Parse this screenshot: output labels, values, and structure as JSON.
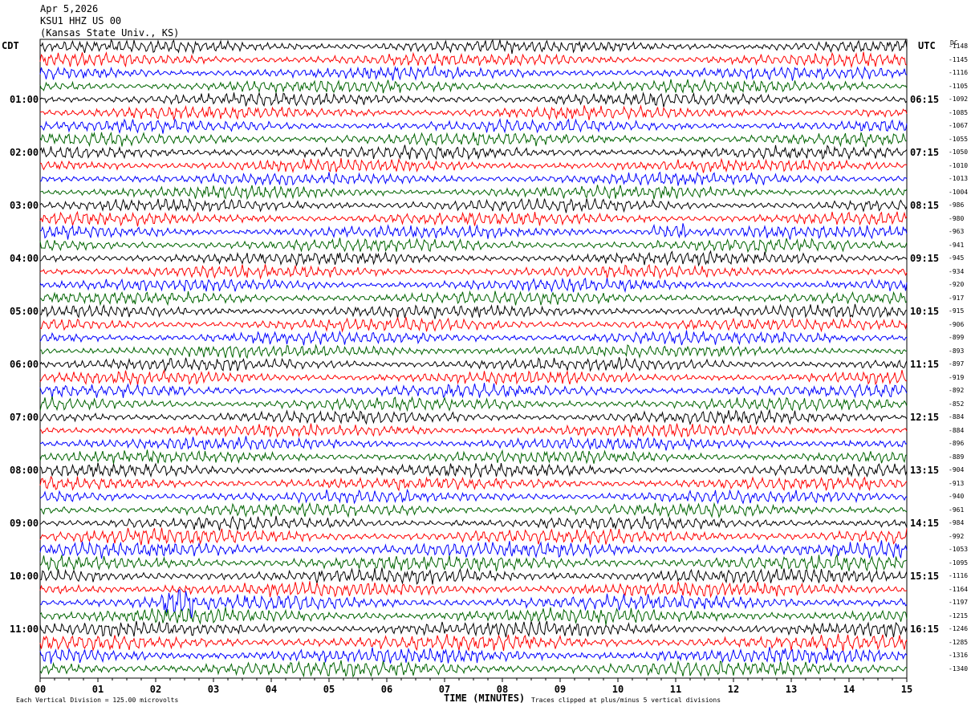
{
  "header": {
    "date": "Apr 5,2026",
    "station": "KSU1 HHZ US 00",
    "institution": "(Kansas State Univ., KS)"
  },
  "tz_left": "CDT",
  "tz_right": "UTC",
  "dc_label": "DC",
  "left_times": [
    "01:00",
    "02:00",
    "03:00",
    "04:00",
    "05:00",
    "06:00",
    "07:00",
    "08:00",
    "09:00",
    "10:00",
    "11:00"
  ],
  "right_times": [
    "06:15",
    "07:15",
    "08:15",
    "09:15",
    "10:15",
    "11:15",
    "12:15",
    "13:15",
    "14:15",
    "15:15",
    "16:15"
  ],
  "dc_offsets": [
    "-1148",
    "-1145",
    "-1116",
    "-1105",
    "-1092",
    "-1085",
    "-1067",
    "-1055",
    "-1050",
    "-1010",
    "-1013",
    "-1004",
    "-986",
    "-980",
    "-963",
    "-941",
    "-945",
    "-934",
    "-920",
    "-917",
    "-915",
    "-906",
    "-899",
    "-893",
    "-897",
    "-919",
    "-892",
    "-852",
    "-884",
    "-884",
    "-896",
    "-889",
    "-904",
    "-913",
    "-940",
    "-961",
    "-984",
    "-992",
    "-1053",
    "-1095",
    "-1116",
    "-1164",
    "-1197",
    "-1215",
    "-1246",
    "-1285",
    "-1316",
    "-1340"
  ],
  "x_ticks": [
    "00",
    "01",
    "02",
    "03",
    "04",
    "05",
    "06",
    "07",
    "08",
    "09",
    "10",
    "11",
    "12",
    "13",
    "14",
    "15"
  ],
  "xlabel": "TIME (MINUTES)",
  "note_left": "Each Vertical Division =  125.00 microvolts",
  "note_right": "Traces clipped at plus/minus 5 vertical divisions",
  "chart_data": {
    "type": "line",
    "title": "KSU1 HHZ US 00",
    "xlabel": "TIME (MINUTES)",
    "xlim": [
      0,
      15
    ],
    "trace_count": 48,
    "trace_minutes": 15,
    "colors": [
      "#000000",
      "#ff0000",
      "#0000ff",
      "#006400"
    ],
    "amplitude_per_division_microvolts": 125.0,
    "clip_divisions": 5,
    "events": [
      {
        "trace_index": 14,
        "minute": 10.9,
        "color": "#0000ff"
      },
      {
        "trace_index": 42,
        "minute": 2.4,
        "color": "#0000ff"
      }
    ]
  }
}
